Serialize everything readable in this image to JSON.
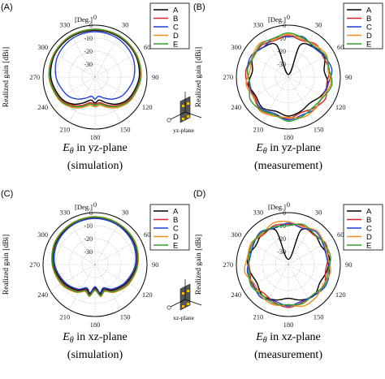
{
  "figure": {
    "unit_label": "[Deg.]",
    "ylabel": "Realized gain [dBi]"
  },
  "chart_data": [
    {
      "type": "polar-line",
      "panel_label": "(A)",
      "caption_field": "E",
      "caption_sub": "θ",
      "caption_plane": " in yz-plane",
      "caption_sub2": "(simulation)",
      "plane_label": "yz-plane",
      "r_ticks": [
        "-30",
        "-20",
        "-10",
        "0"
      ],
      "r_range": [
        -40,
        0
      ],
      "angle_ticks": [
        "0",
        "30",
        "60",
        "90",
        "120",
        "150",
        "180",
        "210",
        "240",
        "270",
        "300",
        "330"
      ],
      "series": [
        {
          "name": "A",
          "color": "#000000",
          "angles": [
            0,
            30,
            60,
            90,
            120,
            140,
            155,
            170,
            180,
            190,
            205,
            220,
            240,
            270,
            300,
            330
          ],
          "values": [
            -4,
            -4,
            -4.5,
            -6,
            -9,
            -13,
            -18,
            -22,
            -20,
            -22,
            -18,
            -13,
            -9,
            -6,
            -4.5,
            -4
          ]
        },
        {
          "name": "B",
          "color": "#d62728",
          "angles": [
            0,
            30,
            60,
            90,
            120,
            140,
            155,
            170,
            180,
            190,
            205,
            220,
            240,
            270,
            300,
            330
          ],
          "values": [
            -3.5,
            -3.5,
            -4,
            -5,
            -8,
            -12,
            -16,
            -20,
            -19,
            -20,
            -16,
            -12,
            -8,
            -5,
            -4,
            -3.5
          ]
        },
        {
          "name": "C",
          "color": "#1f3fd6",
          "angles": [
            0,
            30,
            60,
            90,
            120,
            140,
            155,
            170,
            180,
            190,
            205,
            220,
            240,
            270,
            300,
            330
          ],
          "values": [
            -5,
            -5.5,
            -7,
            -10,
            -14,
            -18,
            -22,
            -25,
            -23,
            -25,
            -22,
            -18,
            -14,
            -10,
            -7,
            -5.5
          ]
        },
        {
          "name": "D",
          "color": "#f28e1c",
          "angles": [
            0,
            30,
            60,
            90,
            120,
            140,
            155,
            170,
            180,
            190,
            205,
            220,
            240,
            270,
            300,
            330
          ],
          "values": [
            -3,
            -3,
            -3.5,
            -4.5,
            -7,
            -10,
            -14,
            -18,
            -17,
            -18,
            -14,
            -10,
            -7,
            -4.5,
            -3.5,
            -3
          ]
        },
        {
          "name": "E",
          "color": "#2ca02c",
          "angles": [
            0,
            30,
            60,
            90,
            120,
            140,
            155,
            170,
            180,
            190,
            205,
            220,
            240,
            270,
            300,
            330
          ],
          "values": [
            -3.2,
            -3.2,
            -3.8,
            -4.8,
            -7.5,
            -11,
            -15,
            -19,
            -18,
            -19,
            -15,
            -11,
            -7.5,
            -4.8,
            -3.8,
            -3.2
          ]
        }
      ]
    },
    {
      "type": "polar-line",
      "panel_label": "(B)",
      "caption_field": "E",
      "caption_sub": "θ",
      "caption_plane": " in yz-plane",
      "caption_sub2": "(measurement)",
      "r_ticks": [
        "-30",
        "-20",
        "-10",
        "0"
      ],
      "r_range": [
        -40,
        0
      ],
      "angle_ticks": [
        "0",
        "30",
        "60",
        "90",
        "120",
        "150",
        "180",
        "210",
        "240",
        "270",
        "300",
        "330"
      ],
      "series": [
        {
          "name": "A",
          "color": "#000000",
          "angles": [
            0,
            20,
            40,
            60,
            80,
            100,
            120,
            140,
            160,
            180,
            200,
            220,
            240,
            260,
            280,
            300,
            320,
            340
          ],
          "values": [
            -38,
            -14,
            -10,
            -8,
            -12,
            -9,
            -11,
            -14,
            -12,
            -10,
            -12,
            -9,
            -11,
            -9,
            -12,
            -8,
            -10,
            -14
          ]
        },
        {
          "name": "B",
          "color": "#d62728",
          "angles": [
            0,
            20,
            40,
            60,
            80,
            100,
            120,
            140,
            160,
            180,
            200,
            220,
            240,
            260,
            280,
            300,
            320,
            340
          ],
          "values": [
            -8,
            -10,
            -7,
            -9,
            -8,
            -10,
            -7,
            -9,
            -11,
            -8,
            -9,
            -7,
            -10,
            -8,
            -7,
            -9,
            -8,
            -10
          ]
        },
        {
          "name": "C",
          "color": "#1f3fd6",
          "angles": [
            0,
            20,
            40,
            60,
            80,
            100,
            120,
            140,
            160,
            180,
            200,
            220,
            240,
            260,
            280,
            300,
            320,
            340
          ],
          "values": [
            -9,
            -7,
            -10,
            -8,
            -6,
            -9,
            -10,
            -8,
            -9,
            -7,
            -10,
            -8,
            -9,
            -10,
            -8,
            -7,
            -10,
            -8
          ]
        },
        {
          "name": "D",
          "color": "#f28e1c",
          "angles": [
            0,
            20,
            40,
            60,
            80,
            100,
            120,
            140,
            160,
            180,
            200,
            220,
            240,
            260,
            280,
            300,
            320,
            340
          ],
          "values": [
            -7,
            -9,
            -8,
            -6,
            -9,
            -7,
            -10,
            -8,
            -7,
            -9,
            -8,
            -6,
            -9,
            -7,
            -10,
            -8,
            -6,
            -9
          ]
        },
        {
          "name": "E",
          "color": "#2ca02c",
          "angles": [
            0,
            20,
            40,
            60,
            80,
            100,
            120,
            140,
            160,
            180,
            200,
            220,
            240,
            260,
            280,
            300,
            320,
            340
          ],
          "values": [
            -6,
            -8,
            -9,
            -7,
            -8,
            -6,
            -9,
            -10,
            -8,
            -6,
            -9,
            -7,
            -6,
            -10,
            -8,
            -9,
            -7,
            -8
          ]
        }
      ]
    },
    {
      "type": "polar-line",
      "panel_label": "(C)",
      "caption_field": "E",
      "caption_sub": "θ",
      "caption_plane": " in xz-plane",
      "caption_sub2": "(simulation)",
      "plane_label": "xz-plane",
      "r_ticks": [
        "-30",
        "-20",
        "-10",
        "0"
      ],
      "r_range": [
        -40,
        0
      ],
      "angle_ticks": [
        "0",
        "30",
        "60",
        "90",
        "120",
        "150",
        "180",
        "210",
        "240",
        "270",
        "300",
        "330"
      ],
      "series": [
        {
          "name": "A",
          "color": "#000000",
          "angles": [
            0,
            30,
            60,
            90,
            120,
            145,
            160,
            170,
            180,
            190,
            200,
            215,
            240,
            270,
            300,
            330
          ],
          "values": [
            -4,
            -4.5,
            -5.5,
            -8,
            -12,
            -16,
            -20,
            -17,
            -22,
            -17,
            -20,
            -16,
            -12,
            -8,
            -5.5,
            -4.5
          ]
        },
        {
          "name": "B",
          "color": "#d62728",
          "angles": [
            0,
            30,
            60,
            90,
            120,
            145,
            160,
            170,
            180,
            190,
            200,
            215,
            240,
            270,
            300,
            330
          ],
          "values": [
            -3.5,
            -4,
            -5,
            -7.5,
            -11,
            -15,
            -19,
            -16,
            -21,
            -16,
            -19,
            -15,
            -11,
            -7.5,
            -5,
            -4
          ]
        },
        {
          "name": "C",
          "color": "#1f3fd6",
          "angles": [
            0,
            30,
            60,
            90,
            120,
            145,
            160,
            170,
            180,
            190,
            200,
            215,
            240,
            270,
            300,
            330
          ],
          "values": [
            -4.5,
            -5,
            -6.5,
            -9,
            -13,
            -17,
            -21,
            -18,
            -23,
            -18,
            -21,
            -17,
            -13,
            -9,
            -6.5,
            -5
          ]
        },
        {
          "name": "D",
          "color": "#f28e1c",
          "angles": [
            0,
            30,
            60,
            90,
            120,
            145,
            160,
            170,
            180,
            190,
            200,
            215,
            240,
            270,
            300,
            330
          ],
          "values": [
            -3,
            -3.5,
            -4.5,
            -7,
            -10,
            -14,
            -18,
            -15,
            -20,
            -15,
            -18,
            -14,
            -10,
            -7,
            -4.5,
            -3.5
          ]
        },
        {
          "name": "E",
          "color": "#2ca02c",
          "angles": [
            0,
            30,
            60,
            90,
            120,
            145,
            160,
            170,
            180,
            190,
            200,
            215,
            240,
            270,
            300,
            330
          ],
          "values": [
            -3.3,
            -3.8,
            -4.8,
            -7.3,
            -10.5,
            -14.5,
            -18.5,
            -15.5,
            -20.5,
            -15.5,
            -18.5,
            -14.5,
            -10.5,
            -7.3,
            -4.8,
            -3.8
          ]
        }
      ]
    },
    {
      "type": "polar-line",
      "panel_label": "(D)",
      "caption_field": "E",
      "caption_sub": "θ",
      "caption_plane": " in xz-plane",
      "caption_sub2": "(measurement)",
      "r_ticks": [
        "-30",
        "-20",
        "-10",
        "0"
      ],
      "r_range": [
        -40,
        0
      ],
      "angle_ticks": [
        "0",
        "30",
        "60",
        "90",
        "120",
        "150",
        "180",
        "210",
        "240",
        "270",
        "300",
        "330"
      ],
      "series": [
        {
          "name": "A",
          "color": "#000000",
          "angles": [
            0,
            20,
            40,
            60,
            80,
            100,
            120,
            140,
            160,
            180,
            200,
            220,
            240,
            260,
            280,
            300,
            320,
            340
          ],
          "values": [
            -36,
            -12,
            -9,
            -11,
            -8,
            -10,
            -12,
            -9,
            -11,
            -14,
            -11,
            -9,
            -12,
            -10,
            -8,
            -11,
            -9,
            -12
          ]
        },
        {
          "name": "B",
          "color": "#d62728",
          "angles": [
            0,
            20,
            40,
            60,
            80,
            100,
            120,
            140,
            160,
            180,
            200,
            220,
            240,
            260,
            280,
            300,
            320,
            340
          ],
          "values": [
            -9,
            -8,
            -10,
            -7,
            -9,
            -11,
            -8,
            -10,
            -9,
            -7,
            -9,
            -11,
            -8,
            -10,
            -9,
            -7,
            -10,
            -8
          ]
        },
        {
          "name": "C",
          "color": "#1f3fd6",
          "angles": [
            0,
            20,
            40,
            60,
            80,
            100,
            120,
            140,
            160,
            180,
            200,
            220,
            240,
            260,
            280,
            300,
            320,
            340
          ],
          "values": [
            -8,
            -10,
            -7,
            -9,
            -10,
            -8,
            -7,
            -9,
            -10,
            -8,
            -10,
            -7,
            -9,
            -8,
            -10,
            -9,
            -7,
            -10
          ]
        },
        {
          "name": "D",
          "color": "#f28e1c",
          "angles": [
            0,
            20,
            40,
            60,
            80,
            100,
            120,
            140,
            160,
            180,
            200,
            220,
            240,
            260,
            280,
            300,
            320,
            340
          ],
          "values": [
            -7,
            -9,
            -6,
            -8,
            -9,
            -7,
            -9,
            -7,
            -6,
            -9,
            -7,
            -8,
            -10,
            -6,
            -8,
            -7,
            -9,
            -6
          ]
        },
        {
          "name": "E",
          "color": "#2ca02c",
          "angles": [
            0,
            20,
            40,
            60,
            80,
            100,
            120,
            140,
            160,
            180,
            200,
            220,
            240,
            260,
            280,
            300,
            320,
            340
          ],
          "values": [
            -10,
            -7,
            -9,
            -8,
            -7,
            -9,
            -8,
            -10,
            -8,
            -9,
            -8,
            -9,
            -7,
            -9,
            -9,
            -8,
            -8,
            -9
          ]
        }
      ]
    }
  ]
}
